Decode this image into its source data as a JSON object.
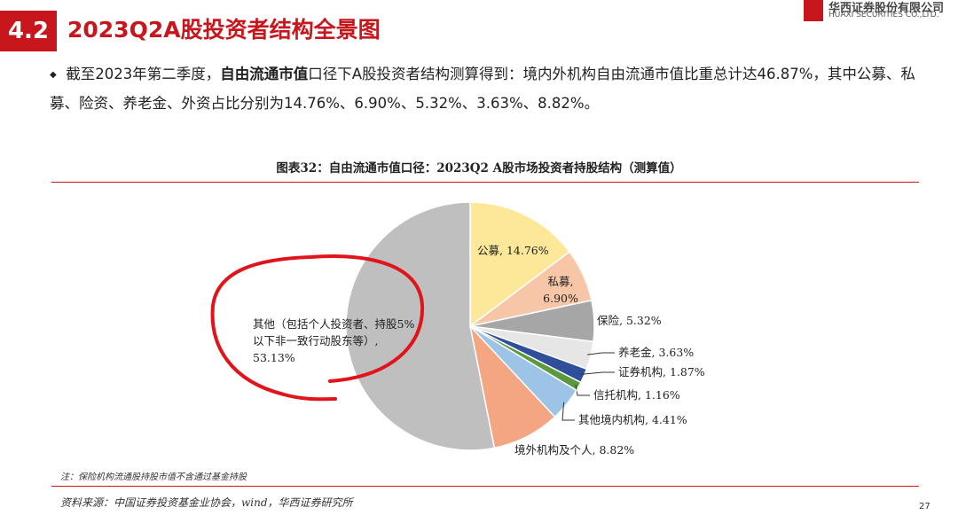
{
  "header": {
    "number": "4.2",
    "title": "2023Q2A股投资者结构全景图"
  },
  "logo": {
    "name": "华西证券股份有限公司",
    "name_en": "HUAXI SECURITIES CO.,LTD."
  },
  "bullet": {
    "parts": [
      "截至2023年第二季度，",
      "自由流通市值",
      "口径下A股投资者结构测算得到：境内外机构自由流通市值比重总计达46.87%，其中公募、私募、险资、养老金、外资占比分别为14.76%、6.90%、5.32%、3.63%、8.82%。"
    ]
  },
  "chart_data": {
    "type": "pie",
    "title": "图表32：自由流通市值口径：2023Q2 A股市场投资者持股结构（测算值）",
    "values": [
      14.76,
      6.9,
      5.32,
      3.63,
      1.87,
      1.16,
      4.41,
      8.82,
      53.13
    ],
    "value_labels": [
      "公募, 14.76%",
      "私募, 6.90%",
      "保险, 5.32%",
      "养老金, 3.63%",
      "证券机构, 1.87%",
      "信托机构, 1.16%",
      "其他境内机构, 4.41%",
      "境外机构及个人, 8.82%",
      "其他（包括个人投资者、持股5%以下非一致行动股东等）, 53.13%"
    ],
    "colors": [
      "#fde89a",
      "#f7c6a7",
      "#a6a6a6",
      "#e6e6e6",
      "#2f4f9a",
      "#5a9a3c",
      "#9dc3e6",
      "#f4a582",
      "#bfbfbf"
    ]
  },
  "note": "注：保险机构流通股持股市值不含通过基金持股",
  "source": "资料来源：中国证券投资基金业协会，wind，华西证券研究所",
  "page_number": "27"
}
